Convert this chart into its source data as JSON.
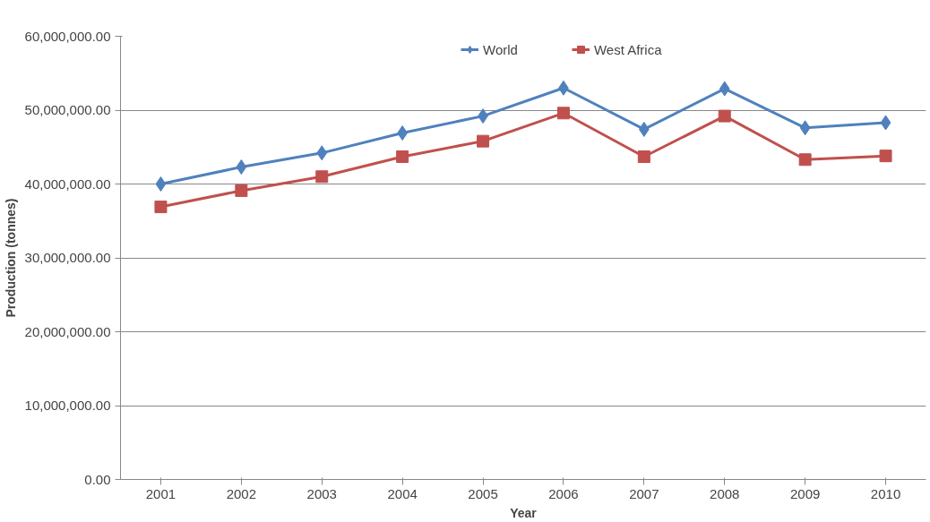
{
  "chart_data": {
    "type": "line",
    "xlabel": "Year",
    "ylabel": "Production (tonnes)",
    "categories": [
      "2001",
      "2002",
      "2003",
      "2004",
      "2005",
      "2006",
      "2007",
      "2008",
      "2009",
      "2010"
    ],
    "series": [
      {
        "name": "World",
        "color": "#4f81bd",
        "marker": "diamond",
        "values": [
          40000000,
          42300000,
          44200000,
          46900000,
          49200000,
          53000000,
          47400000,
          52900000,
          47600000,
          48300000
        ]
      },
      {
        "name": "West Africa",
        "color": "#c0504d",
        "marker": "square",
        "values": [
          36900000,
          39100000,
          41000000,
          43700000,
          45800000,
          49600000,
          43700000,
          49200000,
          43300000,
          43800000
        ]
      }
    ],
    "ylim": [
      0,
      60000000
    ],
    "yticks": [
      {
        "value": 0,
        "label": "0.00"
      },
      {
        "value": 10000000,
        "label": "10,000,000.00"
      },
      {
        "value": 20000000,
        "label": "20,000,000.00"
      },
      {
        "value": 30000000,
        "label": "30,000,000.00"
      },
      {
        "value": 40000000,
        "label": "40,000,000.00"
      },
      {
        "value": 50000000,
        "label": "50,000,000.00"
      },
      {
        "value": 60000000,
        "label": "60,000,000.00"
      }
    ],
    "grid": "y",
    "legend": "top",
    "line_style": "solid"
  }
}
